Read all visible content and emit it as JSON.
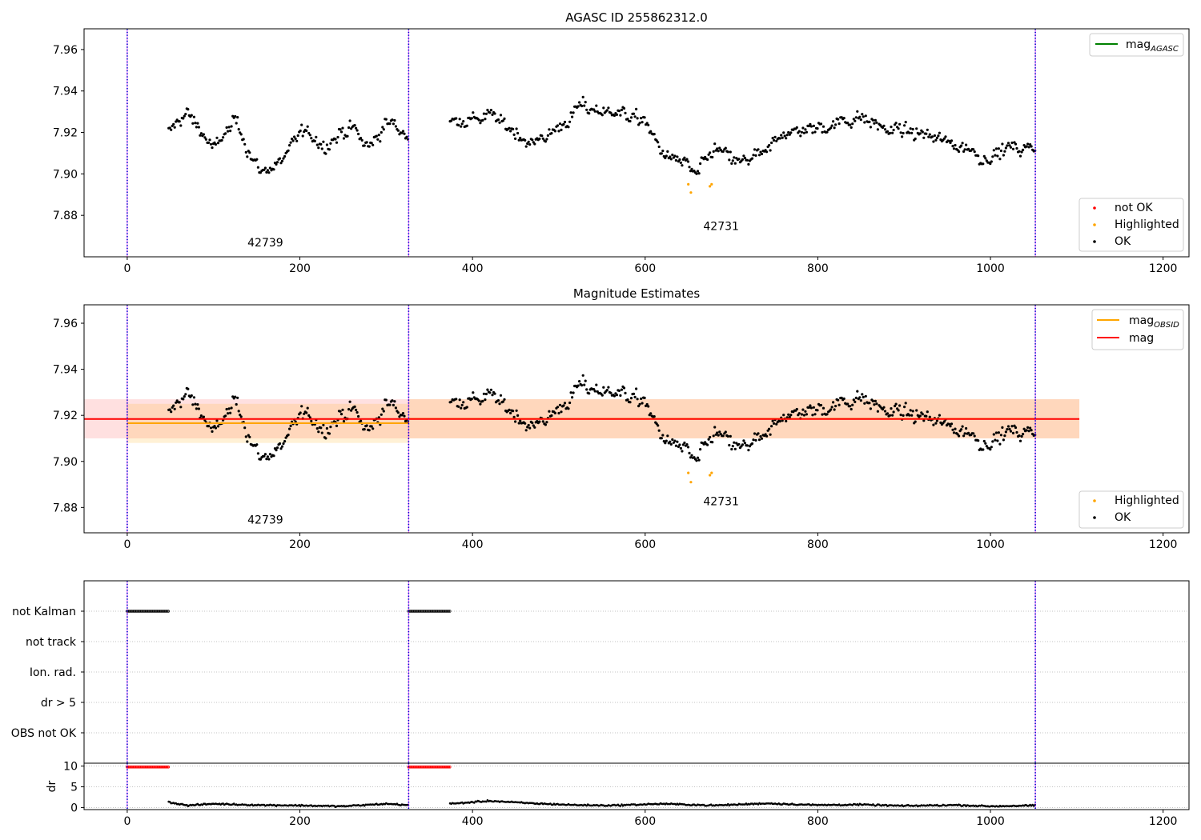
{
  "figure": {
    "title1": "AGASC ID 255862312.0",
    "title2": "Magnitude Estimates"
  },
  "chart_data": [
    {
      "type": "scatter",
      "title": "AGASC ID 255862312.0",
      "xlim": [
        -50,
        1230
      ],
      "ylim": [
        7.86,
        7.97
      ],
      "xticks": [
        0,
        200,
        400,
        600,
        800,
        1000,
        1200
      ],
      "yticks": [
        7.88,
        7.9,
        7.92,
        7.94,
        7.96
      ],
      "ytick_labels": [
        "7.88",
        "7.90",
        "7.92",
        "7.94",
        "7.96"
      ],
      "obsid_boundaries": [
        0,
        326,
        1052
      ],
      "obsid_labels": [
        {
          "text": "42739",
          "x": 160,
          "y": 7.865
        },
        {
          "text": "42731",
          "x": 688,
          "y": 7.873
        }
      ],
      "legend_upper": [
        {
          "label": "mag",
          "subscript": "AGASC",
          "color": "#008000",
          "kind": "line"
        }
      ],
      "legend_lower": [
        {
          "label": "not OK",
          "color": "#ff0000",
          "kind": "dot"
        },
        {
          "label": "Highlighted",
          "color": "#ffa500",
          "kind": "dot"
        },
        {
          "label": "OK",
          "color": "#000000",
          "kind": "dot"
        }
      ],
      "highlighted_points": [
        [
          650,
          7.895
        ],
        [
          653,
          7.891
        ],
        [
          675,
          7.894
        ],
        [
          677,
          7.895
        ]
      ],
      "ok_series": {
        "segments": [
          {
            "x0": 48,
            "x1": 326,
            "keys": [
              [
                48,
                7.92
              ],
              [
                70,
                7.93
              ],
              [
                100,
                7.912
              ],
              [
                125,
                7.925
              ],
              [
                155,
                7.9
              ],
              [
                175,
                7.905
              ],
              [
                200,
                7.92
              ],
              [
                230,
                7.914
              ],
              [
                260,
                7.922
              ],
              [
                280,
                7.912
              ],
              [
                300,
                7.925
              ],
              [
                326,
                7.919
              ]
            ]
          },
          {
            "x0": 374,
            "x1": 1052,
            "keys": [
              [
                374,
                7.925
              ],
              [
                420,
                7.928
              ],
              [
                470,
                7.915
              ],
              [
                500,
                7.922
              ],
              [
                525,
                7.932
              ],
              [
                570,
                7.93
              ],
              [
                600,
                7.925
              ],
              [
                620,
                7.91
              ],
              [
                645,
                7.905
              ],
              [
                660,
                7.9
              ],
              [
                680,
                7.912
              ],
              [
                710,
                7.905
              ],
              [
                740,
                7.91
              ],
              [
                760,
                7.92
              ],
              [
                800,
                7.922
              ],
              [
                850,
                7.928
              ],
              [
                880,
                7.922
              ],
              [
                930,
                7.918
              ],
              [
                960,
                7.915
              ],
              [
                990,
                7.908
              ],
              [
                1020,
                7.912
              ],
              [
                1052,
                7.912
              ]
            ]
          }
        ],
        "step": 1.4,
        "noise": 0.006
      }
    },
    {
      "type": "scatter",
      "title": "Magnitude Estimates",
      "xlim": [
        -50,
        1230
      ],
      "ylim": [
        7.869,
        7.968
      ],
      "xticks": [
        0,
        200,
        400,
        600,
        800,
        1000,
        1200
      ],
      "yticks": [
        7.88,
        7.9,
        7.92,
        7.94,
        7.96
      ],
      "ytick_labels": [
        "7.88",
        "7.90",
        "7.92",
        "7.94",
        "7.96"
      ],
      "obsid_boundaries": [
        0,
        326,
        1052
      ],
      "obsid_labels": [
        {
          "text": "42739",
          "x": 160,
          "y": 7.873
        },
        {
          "text": "42731",
          "x": 688,
          "y": 7.881
        }
      ],
      "bands": [
        {
          "x0": -50,
          "x1": 1103,
          "y0": 7.91,
          "y1": 7.927,
          "color": "#ff0000",
          "opacity": 0.12
        },
        {
          "x0": 0,
          "x1": 326,
          "y0": 7.908,
          "y1": 7.925,
          "color": "#ffa500",
          "opacity": 0.16
        },
        {
          "x0": 326,
          "x1": 1103,
          "y0": 7.91,
          "y1": 7.927,
          "color": "#ffa500",
          "opacity": 0.16
        }
      ],
      "mean_lines": [
        {
          "name": "mag_OBSID",
          "x0": 0,
          "x1": 326,
          "y": 7.9166,
          "color": "#ffa500"
        },
        {
          "name": "mag_OBSID",
          "x0": 326,
          "x1": 1052,
          "y": 7.9185,
          "color": "#ffa500"
        },
        {
          "name": "mag",
          "x0": -50,
          "x1": 1103,
          "y": 7.9184,
          "color": "#ff0000"
        }
      ],
      "legend_upper": [
        {
          "label": "mag",
          "subscript": "OBSID",
          "color": "#ffa500",
          "kind": "line"
        },
        {
          "label": "mag",
          "subscript": "",
          "color": "#ff0000",
          "kind": "line"
        }
      ],
      "legend_lower": [
        {
          "label": "Highlighted",
          "color": "#ffa500",
          "kind": "dot"
        },
        {
          "label": "OK",
          "color": "#000000",
          "kind": "dot"
        }
      ],
      "highlighted_points": [
        [
          650,
          7.895
        ],
        [
          653,
          7.891
        ],
        [
          675,
          7.894
        ],
        [
          677,
          7.895
        ]
      ]
    },
    {
      "type": "scatter",
      "title": "",
      "xlim": [
        -50,
        1230
      ],
      "categories": [
        "not Kalman",
        "not track",
        "Ion. rad.",
        "dr > 5",
        "OBS not OK"
      ],
      "flag_runs": [
        {
          "category": "not Kalman",
          "x0": 0,
          "x1": 48
        },
        {
          "category": "not Kalman",
          "x0": 326,
          "x1": 374
        }
      ],
      "obsid_boundaries": [
        0,
        326,
        1052
      ]
    },
    {
      "type": "scatter",
      "title": "",
      "ylabel": "dr",
      "xlim": [
        -50,
        1230
      ],
      "ylim": [
        -0.5,
        10.7
      ],
      "xticks": [
        0,
        200,
        400,
        600,
        800,
        1000,
        1200
      ],
      "yticks": [
        0,
        5,
        10
      ],
      "capped_runs": [
        {
          "x0": 0,
          "x1": 48,
          "y": 9.8
        },
        {
          "x0": 326,
          "x1": 374,
          "y": 9.8
        }
      ],
      "dr_series": {
        "segments": [
          {
            "x0": 48,
            "x1": 326,
            "keys": [
              [
                48,
                1.3
              ],
              [
                70,
                0.5
              ],
              [
                100,
                0.9
              ],
              [
                150,
                0.6
              ],
              [
                200,
                0.5
              ],
              [
                250,
                0.3
              ],
              [
                300,
                0.9
              ],
              [
                326,
                0.6
              ]
            ]
          },
          {
            "x0": 374,
            "x1": 1052,
            "keys": [
              [
                374,
                0.9
              ],
              [
                420,
                1.6
              ],
              [
                470,
                1.0
              ],
              [
                520,
                0.6
              ],
              [
                560,
                0.5
              ],
              [
                620,
                0.9
              ],
              [
                680,
                0.5
              ],
              [
                740,
                1.0
              ],
              [
                800,
                0.6
              ],
              [
                850,
                0.7
              ],
              [
                900,
                0.4
              ],
              [
                960,
                0.6
              ],
              [
                1000,
                0.3
              ],
              [
                1052,
                0.5
              ]
            ]
          }
        ],
        "step": 1.4,
        "noise": 0.25
      }
    }
  ]
}
